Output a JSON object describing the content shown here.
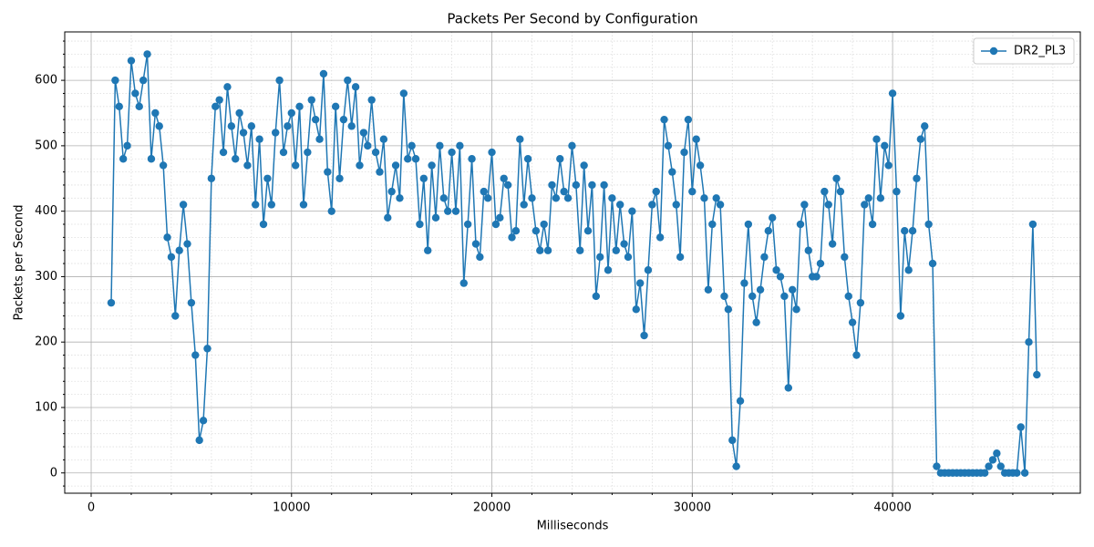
{
  "chart_data": {
    "type": "line",
    "title": "Packets Per Second by Configuration",
    "x_label": "Milliseconds",
    "y_label": "Packets per Second",
    "x": [
      1000,
      1200,
      1400,
      1600,
      1800,
      2000,
      2200,
      2400,
      2600,
      2800,
      3000,
      3200,
      3400,
      3600,
      3800,
      4000,
      4200,
      4400,
      4600,
      4800,
      5000,
      5200,
      5400,
      5600,
      5800,
      6000,
      6200,
      6400,
      6600,
      6800,
      7000,
      7200,
      7400,
      7600,
      7800,
      8000,
      8200,
      8400,
      8600,
      8800,
      9000,
      9200,
      9400,
      9600,
      9800,
      10000,
      10200,
      10400,
      10600,
      10800,
      11000,
      11200,
      11400,
      11600,
      11800,
      12000,
      12200,
      12400,
      12600,
      12800,
      13000,
      13200,
      13400,
      13600,
      13800,
      14000,
      14200,
      14400,
      14600,
      14800,
      15000,
      15200,
      15400,
      15600,
      15800,
      16000,
      16200,
      16400,
      16600,
      16800,
      17000,
      17200,
      17400,
      17600,
      17800,
      18000,
      18200,
      18400,
      18600,
      18800,
      19000,
      19200,
      19400,
      19600,
      19800,
      20000,
      20200,
      20400,
      20600,
      20800,
      21000,
      21200,
      21400,
      21600,
      21800,
      22000,
      22200,
      22400,
      22600,
      22800,
      23000,
      23200,
      23400,
      23600,
      23800,
      24000,
      24200,
      24400,
      24600,
      24800,
      25000,
      25200,
      25400,
      25600,
      25800,
      26000,
      26200,
      26400,
      26600,
      26800,
      27000,
      27200,
      27400,
      27600,
      27800,
      28000,
      28200,
      28400,
      28600,
      28800,
      29000,
      29200,
      29400,
      29600,
      29800,
      30000,
      30200,
      30400,
      30600,
      30800,
      31000,
      31200,
      31400,
      31600,
      31800,
      32000,
      32200,
      32400,
      32600,
      32800,
      33000,
      33200,
      33400,
      33600,
      33800,
      34000,
      34200,
      34400,
      34600,
      34800,
      35000,
      35200,
      35400,
      35600,
      35800,
      36000,
      36200,
      36400,
      36600,
      36800,
      37000,
      37200,
      37400,
      37600,
      37800,
      38000,
      38200,
      38400,
      38600,
      38800,
      39000,
      39200,
      39400,
      39600,
      39800,
      40000,
      40200,
      40400,
      40600,
      40800,
      41000,
      41200,
      41400,
      41600,
      41800,
      42000,
      42200,
      42400,
      42600,
      42800,
      43000,
      43200,
      43400,
      43600,
      43800,
      44000,
      44200,
      44400,
      44600,
      44800,
      45000,
      45200,
      45400,
      45600,
      45800,
      46000,
      46200,
      46400,
      46600,
      46800,
      47000,
      47200
    ],
    "series": [
      {
        "name": "DR2_PL3",
        "color": "#1f77b4",
        "values": [
          260,
          600,
          560,
          480,
          500,
          630,
          580,
          560,
          600,
          640,
          480,
          550,
          530,
          470,
          360,
          330,
          240,
          340,
          410,
          350,
          260,
          180,
          50,
          80,
          190,
          450,
          560,
          570,
          490,
          590,
          530,
          480,
          550,
          520,
          470,
          530,
          410,
          510,
          380,
          450,
          410,
          520,
          600,
          490,
          530,
          550,
          470,
          560,
          410,
          490,
          570,
          540,
          510,
          610,
          460,
          400,
          560,
          450,
          540,
          600,
          530,
          590,
          470,
          520,
          500,
          570,
          490,
          460,
          510,
          390,
          430,
          470,
          420,
          580,
          480,
          500,
          480,
          380,
          450,
          340,
          470,
          390,
          500,
          420,
          400,
          490,
          400,
          500,
          290,
          380,
          480,
          350,
          330,
          430,
          420,
          490,
          380,
          390,
          450,
          440,
          360,
          370,
          510,
          410,
          480,
          420,
          370,
          340,
          380,
          340,
          440,
          420,
          480,
          430,
          420,
          500,
          440,
          340,
          470,
          370,
          440,
          270,
          330,
          440,
          310,
          420,
          340,
          410,
          350,
          330,
          400,
          250,
          290,
          210,
          310,
          410,
          430,
          360,
          540,
          500,
          460,
          410,
          330,
          490,
          540,
          430,
          510,
          470,
          420,
          280,
          380,
          420,
          410,
          270,
          250,
          50,
          10,
          110,
          290,
          380,
          270,
          230,
          280,
          330,
          370,
          390,
          310,
          300,
          270,
          130,
          280,
          250,
          380,
          410,
          340,
          300,
          300,
          320,
          430,
          410,
          350,
          450,
          430,
          330,
          270,
          230,
          180,
          260,
          410,
          420,
          380,
          510,
          420,
          500,
          470,
          580,
          430,
          240,
          370,
          310,
          370,
          450,
          510,
          530,
          380,
          320,
          10,
          0,
          0,
          0,
          0,
          0,
          0,
          0,
          0,
          0,
          0,
          0,
          0,
          10,
          20,
          30,
          10,
          0,
          0,
          0,
          0,
          70,
          0,
          200,
          380,
          150
        ]
      }
    ],
    "xlim": [
      -1320,
      49370
    ],
    "ylim": [
      -31,
      674
    ],
    "xticks": [
      0,
      10000,
      20000,
      30000,
      40000
    ],
    "yticks": [
      0,
      100,
      200,
      300,
      400,
      500,
      600
    ],
    "xminorticks": [
      2000,
      4000,
      6000,
      8000,
      12000,
      14000,
      16000,
      18000,
      22000,
      24000,
      26000,
      28000,
      32000,
      34000,
      36000,
      38000,
      42000,
      44000,
      46000,
      48000
    ],
    "yminorticks": [
      -20,
      20,
      40,
      60,
      80,
      120,
      140,
      160,
      180,
      220,
      240,
      260,
      280,
      320,
      340,
      360,
      380,
      420,
      440,
      460,
      480,
      520,
      540,
      560,
      580,
      620,
      640,
      660
    ],
    "grid": true,
    "minor_grid": true,
    "legend_position": "upper right"
  }
}
